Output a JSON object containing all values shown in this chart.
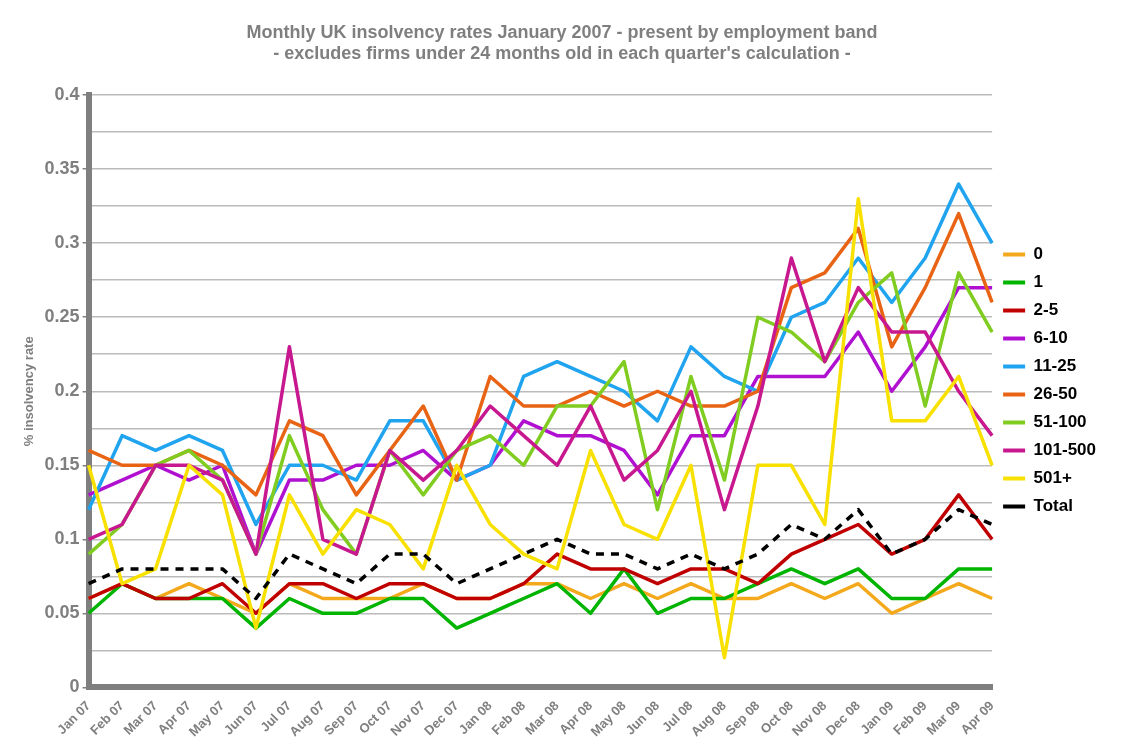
{
  "chart_data": {
    "type": "line",
    "title": "Monthly UK insolvency rates January 2007 - present by employment band",
    "subtitle": "- excludes firms under 24 months old in each quarter's calculation -",
    "ylabel": "% insolvency rate",
    "categories": [
      "Jan 07",
      "Feb 07",
      "Mar 07",
      "Apr 07",
      "May 07",
      "Jun 07",
      "Jul 07",
      "Aug 07",
      "Sep 07",
      "Oct 07",
      "Nov 07",
      "Dec 07",
      "Jan 08",
      "Feb 08",
      "Mar 08",
      "Apr 08",
      "May 08",
      "Jun 08",
      "Jul 08",
      "Aug 08",
      "Sep 08",
      "Oct 08",
      "Nov 08",
      "Dec 08",
      "Jan 09",
      "Feb 09",
      "Mar 09",
      "Apr 09"
    ],
    "series": [
      {
        "name": "0",
        "color": "#f4a81c",
        "values": [
          0.06,
          0.07,
          0.06,
          0.07,
          0.06,
          0.05,
          0.07,
          0.06,
          0.06,
          0.06,
          0.07,
          0.06,
          0.06,
          0.07,
          0.07,
          0.06,
          0.07,
          0.06,
          0.07,
          0.06,
          0.06,
          0.07,
          0.06,
          0.07,
          0.05,
          0.06,
          0.07,
          0.06
        ]
      },
      {
        "name": "1",
        "color": "#00b400",
        "values": [
          0.05,
          0.07,
          0.06,
          0.06,
          0.06,
          0.04,
          0.06,
          0.05,
          0.05,
          0.06,
          0.06,
          0.04,
          0.05,
          0.06,
          0.07,
          0.05,
          0.08,
          0.05,
          0.06,
          0.06,
          0.07,
          0.08,
          0.07,
          0.08,
          0.06,
          0.06,
          0.08,
          0.08
        ]
      },
      {
        "name": "2-5",
        "color": "#c00000",
        "values": [
          0.06,
          0.07,
          0.06,
          0.06,
          0.07,
          0.05,
          0.07,
          0.07,
          0.06,
          0.07,
          0.07,
          0.06,
          0.06,
          0.07,
          0.09,
          0.08,
          0.08,
          0.07,
          0.08,
          0.08,
          0.07,
          0.09,
          0.1,
          0.11,
          0.09,
          0.1,
          0.13,
          0.1
        ]
      },
      {
        "name": "6-10",
        "color": "#b010d0",
        "values": [
          0.13,
          0.14,
          0.15,
          0.14,
          0.15,
          0.09,
          0.14,
          0.14,
          0.15,
          0.15,
          0.16,
          0.14,
          0.15,
          0.18,
          0.17,
          0.17,
          0.16,
          0.13,
          0.17,
          0.17,
          0.21,
          0.21,
          0.21,
          0.24,
          0.2,
          0.23,
          0.27,
          0.27
        ]
      },
      {
        "name": "11-25",
        "color": "#20a4f0",
        "values": [
          0.12,
          0.17,
          0.16,
          0.17,
          0.16,
          0.11,
          0.15,
          0.15,
          0.14,
          0.18,
          0.18,
          0.14,
          0.15,
          0.21,
          0.22,
          0.21,
          0.2,
          0.18,
          0.23,
          0.21,
          0.2,
          0.25,
          0.26,
          0.29,
          0.26,
          0.29,
          0.34,
          0.3
        ]
      },
      {
        "name": "26-50",
        "color": "#e86414",
        "values": [
          0.16,
          0.15,
          0.15,
          0.16,
          0.15,
          0.13,
          0.18,
          0.17,
          0.13,
          0.16,
          0.19,
          0.14,
          0.21,
          0.19,
          0.19,
          0.2,
          0.19,
          0.2,
          0.19,
          0.19,
          0.2,
          0.27,
          0.28,
          0.31,
          0.23,
          0.27,
          0.32,
          0.26
        ]
      },
      {
        "name": "51-100",
        "color": "#80cc20",
        "values": [
          0.09,
          0.11,
          0.15,
          0.16,
          0.14,
          0.09,
          0.17,
          0.12,
          0.09,
          0.16,
          0.13,
          0.16,
          0.17,
          0.15,
          0.19,
          0.19,
          0.22,
          0.12,
          0.21,
          0.14,
          0.25,
          0.24,
          0.22,
          0.26,
          0.28,
          0.19,
          0.28,
          0.24
        ]
      },
      {
        "name": "101-500",
        "color": "#c81890",
        "values": [
          0.1,
          0.11,
          0.15,
          0.15,
          0.14,
          0.09,
          0.23,
          0.1,
          0.09,
          0.16,
          0.14,
          0.16,
          0.19,
          0.17,
          0.15,
          0.19,
          0.14,
          0.16,
          0.2,
          0.12,
          0.19,
          0.29,
          0.22,
          0.27,
          0.24,
          0.24,
          0.2,
          0.17
        ]
      },
      {
        "name": "501+",
        "color": "#f8e000",
        "values": [
          0.15,
          0.07,
          0.08,
          0.15,
          0.13,
          0.04,
          0.13,
          0.09,
          0.12,
          0.11,
          0.08,
          0.15,
          0.11,
          0.09,
          0.08,
          0.16,
          0.11,
          0.1,
          0.15,
          0.02,
          0.15,
          0.15,
          0.11,
          0.33,
          0.18,
          0.18,
          0.21,
          0.15
        ]
      },
      {
        "name": "Total",
        "color": "#000000",
        "line_style": "dashed",
        "values": [
          0.07,
          0.08,
          0.08,
          0.08,
          0.08,
          0.06,
          0.09,
          0.08,
          0.07,
          0.09,
          0.09,
          0.07,
          0.08,
          0.09,
          0.1,
          0.09,
          0.09,
          0.08,
          0.09,
          0.08,
          0.09,
          0.11,
          0.1,
          0.12,
          0.09,
          0.1,
          0.12,
          0.11
        ]
      }
    ],
    "ylim": [
      0,
      0.4
    ],
    "yticks": [
      0,
      {
        "value": 0.025,
        "label": null
      },
      0.05,
      {
        "value": 0.075,
        "label": null
      },
      0.1,
      {
        "value": 0.125,
        "label": null
      },
      0.15,
      {
        "value": 0.175,
        "label": null
      },
      0.2,
      {
        "value": 0.225,
        "label": null
      },
      0.25,
      {
        "value": 0.275,
        "label": null
      },
      0.3,
      {
        "value": 0.325,
        "label": null
      },
      0.35,
      {
        "value": 0.375,
        "label": null
      },
      0.4
    ],
    "grid": "y",
    "legend": "right",
    "marker": "none",
    "line_style": "solid"
  }
}
